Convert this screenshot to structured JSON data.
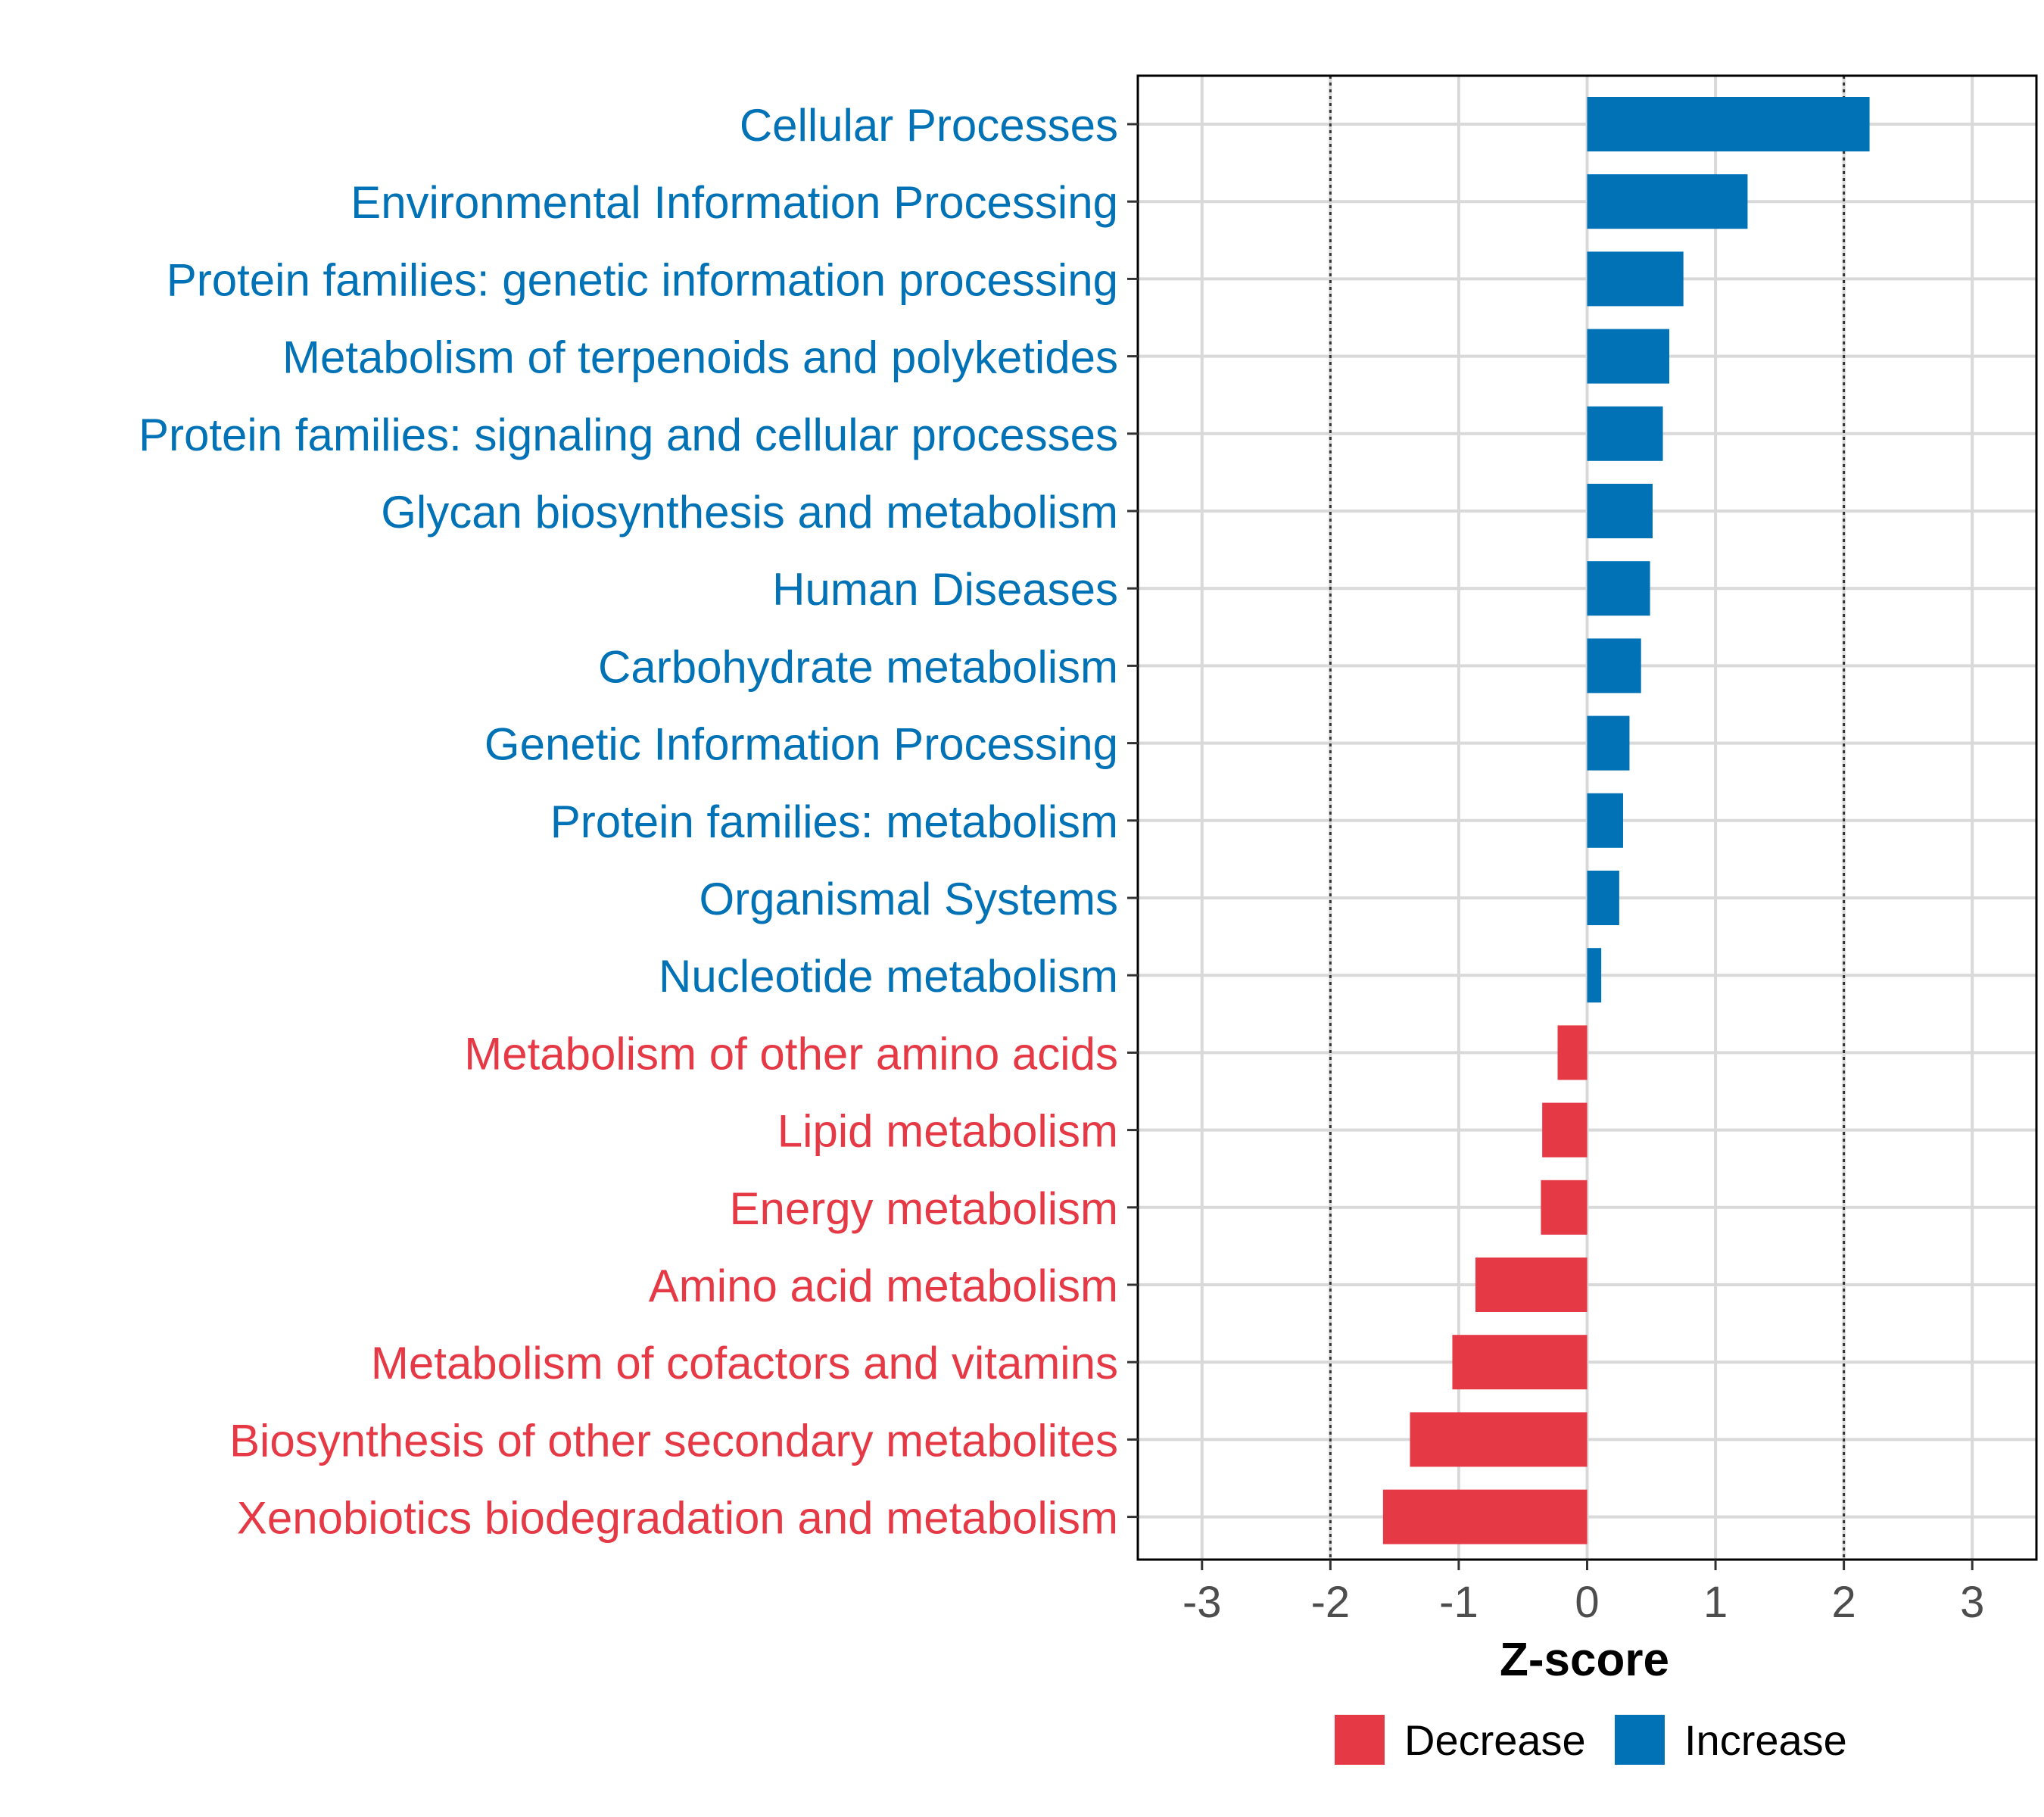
{
  "chart_data": {
    "type": "bar",
    "orientation": "horizontal",
    "title": "",
    "xlabel": "Z-score",
    "ylabel": "",
    "xlim": [
      -3.5,
      3.5
    ],
    "xticks": [
      -3,
      -2,
      -1,
      0,
      1,
      2,
      3
    ],
    "xtick_labels": [
      "-3",
      "-2",
      "-1",
      "0",
      "1",
      "2",
      "3"
    ],
    "reference_lines": [
      -2,
      2
    ],
    "grid": true,
    "legend_position": "bottom",
    "colors": {
      "Increase": "#0072B5",
      "Decrease": "#E63946",
      "grid": "#d9d9d9",
      "axis": "#000000",
      "tick_text": "#4d4d4d"
    },
    "legend": [
      {
        "label": "Decrease",
        "color": "#E63946"
      },
      {
        "label": "Increase",
        "color": "#0072B5"
      }
    ],
    "categories": [
      "Cellular Processes",
      "Environmental Information Processing",
      "Protein families: genetic information processing",
      "Metabolism of terpenoids and polyketides",
      "Protein families: signaling and cellular processes",
      "Glycan biosynthesis and metabolism",
      "Human Diseases",
      "Carbohydrate metabolism",
      "Genetic Information Processing",
      "Protein families: metabolism",
      "Organismal Systems",
      "Nucleotide metabolism",
      "Metabolism of other amino acids",
      "Lipid metabolism",
      "Energy metabolism",
      "Amino acid metabolism",
      "Metabolism of cofactors and vitamins",
      "Biosynthesis of other secondary metabolites",
      "Xenobiotics biodegradation and metabolism"
    ],
    "values": [
      2.2,
      1.25,
      0.75,
      0.64,
      0.59,
      0.51,
      0.49,
      0.42,
      0.33,
      0.28,
      0.25,
      0.11,
      -0.23,
      -0.35,
      -0.36,
      -0.87,
      -1.05,
      -1.38,
      -1.59
    ],
    "groups": [
      "Increase",
      "Increase",
      "Increase",
      "Increase",
      "Increase",
      "Increase",
      "Increase",
      "Increase",
      "Increase",
      "Increase",
      "Increase",
      "Increase",
      "Decrease",
      "Decrease",
      "Decrease",
      "Decrease",
      "Decrease",
      "Decrease",
      "Decrease"
    ]
  }
}
